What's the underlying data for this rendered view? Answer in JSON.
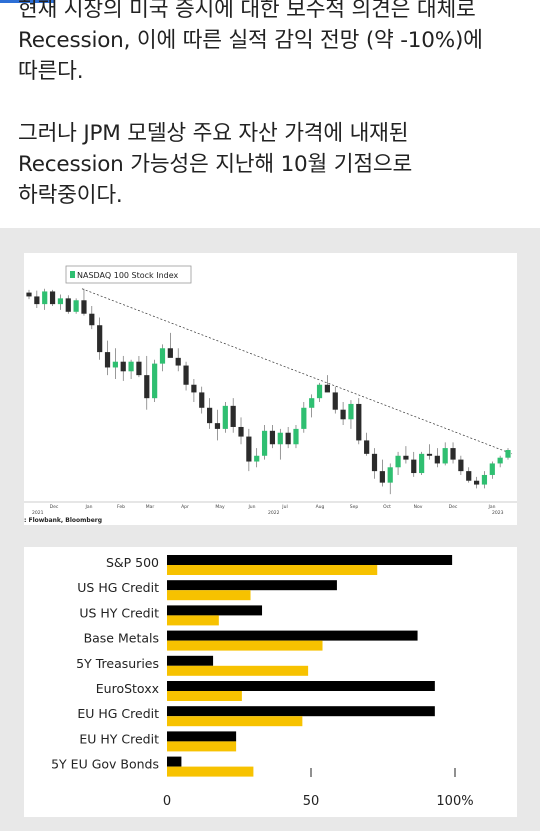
{
  "post": {
    "lines": [
      "현재 시장의 미국 증시에 대한 보수적 의견은 대체로",
      "Recession, 이에 따른 실적 감익 전망 (약 -10%)에",
      "따른다.",
      "",
      "그러나 JPM 모델상 주요 자산 가격에 내재된",
      "Recession 가능성은 지난해 10월 기점으로",
      "하락중이다."
    ]
  },
  "colors": {
    "up_candle": "#2fbf71",
    "down_candle": "#2b2b2b",
    "bar_primary": "#000000",
    "bar_secondary": "#f7c200",
    "background_gray": "#e8e8e8"
  },
  "chart_data": [
    {
      "type": "line",
      "subtype": "candlestick",
      "legend": "NASDAQ 100 Stock Index",
      "legend_position": "top-left",
      "source": ": Flowbank, Bloomberg",
      "x_ticks": [
        "Dec",
        "Jan",
        "Feb",
        "Mar",
        "Apr",
        "May",
        "Jun",
        "Jul",
        "Aug",
        "Sep",
        "Oct",
        "Nov",
        "Dec",
        "Jan"
      ],
      "year_labels": [
        "2021",
        "2022",
        "2023"
      ],
      "series": [
        {
          "values": [
            [
              16350,
              16420,
              16180,
              16250
            ],
            [
              16250,
              16400,
              15950,
              16050
            ],
            [
              16050,
              16450,
              15900,
              16380
            ],
            [
              16380,
              16420,
              16000,
              16050
            ],
            [
              16050,
              16300,
              15900,
              16200
            ],
            [
              16200,
              16280,
              15800,
              15850
            ],
            [
              15850,
              16200,
              15800,
              16150
            ],
            [
              16150,
              16450,
              15750,
              15800
            ],
            [
              15800,
              16000,
              15400,
              15500
            ],
            [
              15500,
              15700,
              14600,
              14800
            ],
            [
              14800,
              15100,
              14200,
              14400
            ],
            [
              14400,
              14900,
              14100,
              14550
            ],
            [
              14550,
              14700,
              14050,
              14300
            ],
            [
              14300,
              14600,
              14100,
              14550
            ],
            [
              14550,
              14700,
              14150,
              14200
            ],
            [
              14200,
              14700,
              13300,
              13600
            ],
            [
              13600,
              14600,
              13500,
              14500
            ],
            [
              14500,
              15000,
              14300,
              14900
            ],
            [
              14900,
              15300,
              14800,
              14650
            ],
            [
              14650,
              14900,
              14300,
              14450
            ],
            [
              14450,
              14550,
              13800,
              13950
            ],
            [
              13950,
              14100,
              13500,
              13750
            ],
            [
              13750,
              13900,
              13200,
              13350
            ],
            [
              13350,
              13600,
              12800,
              12950
            ],
            [
              12950,
              13300,
              12500,
              12800
            ],
            [
              12800,
              13500,
              12700,
              13400
            ],
            [
              13400,
              13600,
              12700,
              12850
            ],
            [
              12850,
              13100,
              12400,
              12600
            ],
            [
              12600,
              12800,
              11700,
              11950
            ],
            [
              11950,
              12300,
              11800,
              12100
            ],
            [
              12100,
              12900,
              12000,
              12750
            ],
            [
              12750,
              12900,
              12300,
              12400
            ],
            [
              12400,
              12800,
              12000,
              12700
            ],
            [
              12700,
              12850,
              12300,
              12400
            ],
            [
              12400,
              12900,
              12300,
              12800
            ],
            [
              12800,
              13500,
              12700,
              13350
            ],
            [
              13350,
              13700,
              13100,
              13600
            ],
            [
              13600,
              14000,
              13500,
              13950
            ],
            [
              13950,
              14200,
              13800,
              13750
            ],
            [
              13750,
              13900,
              13200,
              13300
            ],
            [
              13300,
              13500,
              12900,
              13050
            ],
            [
              13050,
              13550,
              12800,
              13450
            ],
            [
              13450,
              13600,
              12400,
              12500
            ],
            [
              12500,
              12700,
              12100,
              12150
            ],
            [
              12150,
              12300,
              11500,
              11700
            ],
            [
              11700,
              12000,
              11300,
              11400
            ],
            [
              11400,
              11900,
              11100,
              11800
            ],
            [
              11800,
              12200,
              11600,
              12100
            ],
            [
              12100,
              12350,
              11900,
              12000
            ],
            [
              12000,
              12200,
              11550,
              11650
            ],
            [
              11650,
              12200,
              11600,
              12150
            ],
            [
              12150,
              12400,
              12000,
              12100
            ],
            [
              12100,
              12300,
              11800,
              11900
            ],
            [
              11900,
              12450,
              11850,
              12300
            ],
            [
              12300,
              12450,
              11900,
              12000
            ],
            [
              12000,
              12100,
              11600,
              11700
            ],
            [
              11700,
              11800,
              11400,
              11450
            ],
            [
              11450,
              11550,
              11250,
              11350
            ],
            [
              11350,
              11700,
              11250,
              11600
            ],
            [
              11600,
              11950,
              11500,
              11900
            ],
            [
              11900,
              12100,
              11800,
              12050
            ],
            [
              12050,
              12300,
              12000,
              12250
            ]
          ]
        }
      ],
      "trendline": "dashed",
      "grid": false
    },
    {
      "type": "bar",
      "orientation": "horizontal",
      "categories": [
        "S&P 500",
        "US HG Credit",
        "US HY Credit",
        "Base Metals",
        "5Y Treasuries",
        "EuroStoxx",
        "EU HG Credit",
        "EU HY Credit",
        "5Y EU Gov Bonds"
      ],
      "series": [
        {
          "values": [
            99,
            59,
            33,
            87,
            16,
            93,
            93,
            24,
            5
          ]
        },
        {
          "values": [
            73,
            29,
            18,
            54,
            49,
            26,
            47,
            24,
            30
          ]
        }
      ],
      "xlim": [
        0,
        100
      ],
      "x_ticks": [
        "0",
        "50",
        "100%"
      ],
      "grid": false
    }
  ]
}
